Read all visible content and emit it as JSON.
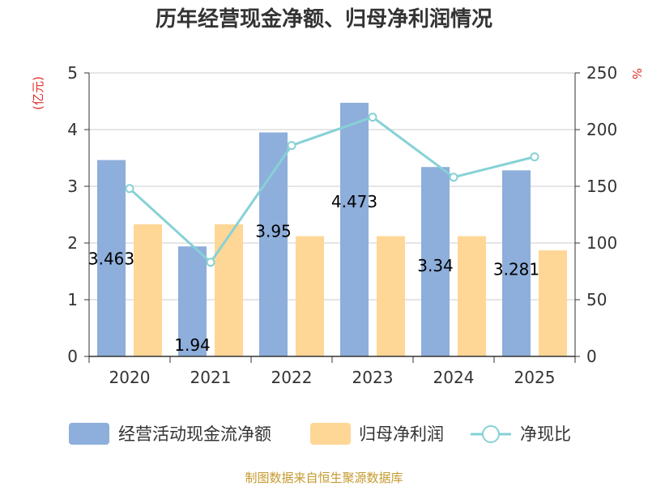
{
  "colors": {
    "cash_flow": "#8eaedb",
    "net_profit": "#fed696",
    "ratio": "#86d1d6",
    "unit_label": "#e0302a",
    "source": "#c59a2e"
  },
  "chart_data": {
    "type": "bar",
    "title": "历年经营现金净额、归母净利润情况",
    "categories": [
      "2020",
      "2021",
      "2022",
      "2023",
      "2024",
      "2025"
    ],
    "series": [
      {
        "name": "经营活动现金流净额",
        "type": "bar",
        "axis": "left",
        "values": [
          3.463,
          1.94,
          3.95,
          4.473,
          3.34,
          3.281
        ],
        "labels": [
          "3.463",
          "1.94",
          "3.95",
          "4.473",
          "3.34",
          "3.281"
        ]
      },
      {
        "name": "归母净利润",
        "type": "bar",
        "axis": "left",
        "values": [
          2.33,
          2.33,
          2.12,
          2.12,
          2.12,
          1.87
        ]
      },
      {
        "name": "净现比",
        "type": "line",
        "axis": "right",
        "values": [
          148,
          83,
          186,
          211,
          158,
          176
        ]
      }
    ],
    "left_axis": {
      "unit": "(亿元)",
      "ylim": [
        0,
        5
      ],
      "ticks": [
        "0",
        "1",
        "2",
        "3",
        "4",
        "5"
      ]
    },
    "right_axis": {
      "unit": "%",
      "ylim": [
        0,
        250
      ],
      "ticks": [
        "0",
        "50",
        "100",
        "150",
        "200",
        "250"
      ]
    },
    "grid": true,
    "legend_position": "bottom"
  },
  "source_text": "制图数据来自恒生聚源数据库"
}
